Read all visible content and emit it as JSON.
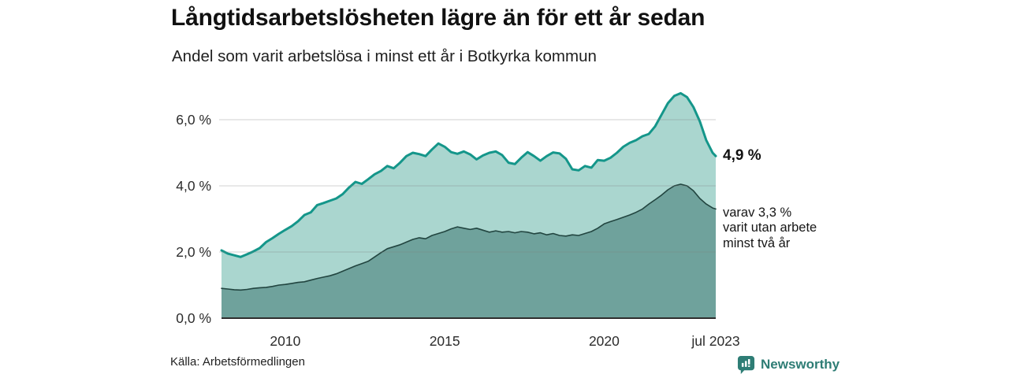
{
  "brand": {
    "name": "Newsworthy",
    "color": "#2e7d75"
  },
  "chart_data": {
    "type": "area",
    "title": "Långtidsarbetslösheten lägre än för ett år sedan",
    "subtitle": "Andel som varit arbetslösa i minst ett år i Botkyrka kommun",
    "source": "Källa: Arbetsförmedlingen",
    "grid": "horizontal",
    "legend_position": "end-labels-right",
    "x_range": [
      2008.0,
      2023.5
    ],
    "ylim": [
      0,
      7
    ],
    "x_ticks": [
      {
        "x": 2010,
        "label": "2010"
      },
      {
        "x": 2015,
        "label": "2015"
      },
      {
        "x": 2020,
        "label": "2020"
      },
      {
        "x": 2023.5,
        "label": "jul 2023"
      }
    ],
    "y_ticks": [
      {
        "value": 0,
        "label": "0,0 %"
      },
      {
        "value": 2,
        "label": "2,0 %"
      },
      {
        "value": 4,
        "label": "4,0 %"
      },
      {
        "value": 6,
        "label": "6,0 %"
      }
    ],
    "x": [
      2008.0,
      2008.2,
      2008.4,
      2008.6,
      2008.8,
      2009.0,
      2009.2,
      2009.4,
      2009.6,
      2009.8,
      2010.0,
      2010.2,
      2010.4,
      2010.6,
      2010.8,
      2011.0,
      2011.2,
      2011.4,
      2011.6,
      2011.8,
      2012.0,
      2012.2,
      2012.4,
      2012.6,
      2012.8,
      2013.0,
      2013.2,
      2013.4,
      2013.6,
      2013.8,
      2014.0,
      2014.2,
      2014.4,
      2014.6,
      2014.8,
      2015.0,
      2015.2,
      2015.4,
      2015.6,
      2015.8,
      2016.0,
      2016.2,
      2016.4,
      2016.6,
      2016.8,
      2017.0,
      2017.2,
      2017.4,
      2017.6,
      2017.8,
      2018.0,
      2018.2,
      2018.4,
      2018.6,
      2018.8,
      2019.0,
      2019.2,
      2019.4,
      2019.6,
      2019.8,
      2020.0,
      2020.2,
      2020.4,
      2020.6,
      2020.8,
      2021.0,
      2021.2,
      2021.4,
      2021.6,
      2021.8,
      2022.0,
      2022.2,
      2022.4,
      2022.6,
      2022.8,
      2023.0,
      2023.2,
      2023.4,
      2023.5
    ],
    "series": [
      {
        "name": "Arbetslösa minst ett år",
        "fill": "#aad6cf",
        "stroke": "#14968a",
        "stroke_width": 3,
        "end_value_label": "4,9 %",
        "values": [
          2.05,
          1.95,
          1.9,
          1.85,
          1.93,
          2.02,
          2.12,
          2.3,
          2.42,
          2.55,
          2.67,
          2.78,
          2.93,
          3.12,
          3.2,
          3.42,
          3.48,
          3.55,
          3.62,
          3.75,
          3.95,
          4.12,
          4.06,
          4.2,
          4.35,
          4.45,
          4.6,
          4.53,
          4.7,
          4.9,
          5.0,
          4.96,
          4.9,
          5.1,
          5.28,
          5.18,
          5.02,
          4.97,
          5.04,
          4.95,
          4.8,
          4.92,
          5.0,
          5.04,
          4.93,
          4.7,
          4.66,
          4.85,
          5.02,
          4.9,
          4.76,
          4.9,
          5.01,
          4.98,
          4.82,
          4.5,
          4.47,
          4.6,
          4.55,
          4.78,
          4.76,
          4.85,
          5.0,
          5.18,
          5.3,
          5.38,
          5.5,
          5.57,
          5.8,
          6.15,
          6.5,
          6.72,
          6.8,
          6.68,
          6.38,
          5.95,
          5.38,
          5.0,
          4.9
        ]
      },
      {
        "name": "Arbetslösa minst två år",
        "fill": "#6fa29c",
        "stroke": "#224540",
        "stroke_width": 1.6,
        "end_value_label": "varav 3,3 % varit utan arbete minst två år",
        "values": [
          0.9,
          0.88,
          0.86,
          0.85,
          0.87,
          0.9,
          0.92,
          0.93,
          0.96,
          1.0,
          1.02,
          1.05,
          1.08,
          1.1,
          1.15,
          1.2,
          1.24,
          1.28,
          1.34,
          1.42,
          1.5,
          1.58,
          1.65,
          1.72,
          1.85,
          1.98,
          2.1,
          2.16,
          2.22,
          2.3,
          2.38,
          2.43,
          2.4,
          2.5,
          2.56,
          2.62,
          2.7,
          2.76,
          2.72,
          2.68,
          2.72,
          2.66,
          2.6,
          2.64,
          2.6,
          2.62,
          2.58,
          2.62,
          2.6,
          2.55,
          2.58,
          2.52,
          2.56,
          2.5,
          2.48,
          2.52,
          2.5,
          2.56,
          2.62,
          2.72,
          2.85,
          2.92,
          2.98,
          3.05,
          3.12,
          3.2,
          3.3,
          3.45,
          3.58,
          3.72,
          3.88,
          4.0,
          4.05,
          4.0,
          3.85,
          3.62,
          3.45,
          3.33,
          3.3
        ]
      }
    ],
    "end_annotations": {
      "series1_value": "4,9 %",
      "series2_lines": [
        "varav 3,3 %",
        "varit utan arbete",
        "minst två år"
      ]
    }
  }
}
